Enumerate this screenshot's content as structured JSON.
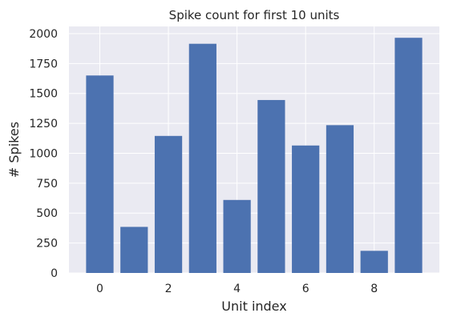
{
  "chart_data": {
    "type": "bar",
    "title": "Spike count for first 10 units",
    "xlabel": "Unit index",
    "ylabel": "# Spikes",
    "x": [
      0,
      1,
      2,
      3,
      4,
      5,
      6,
      7,
      8,
      9
    ],
    "values": [
      1650,
      385,
      1145,
      1915,
      610,
      1445,
      1065,
      1235,
      185,
      1965
    ],
    "xlim": [
      -0.9,
      9.9
    ],
    "ylim": [
      0,
      2060
    ],
    "xticks": [
      0,
      2,
      4,
      6,
      8
    ],
    "yticks": [
      0,
      250,
      500,
      750,
      1000,
      1250,
      1500,
      1750,
      2000
    ],
    "grid": true,
    "style": {
      "bar_color": "#4C72B0",
      "plot_background": "#EAEAF2",
      "grid_color": "#FFFFFF",
      "text_color": "#262626"
    }
  }
}
